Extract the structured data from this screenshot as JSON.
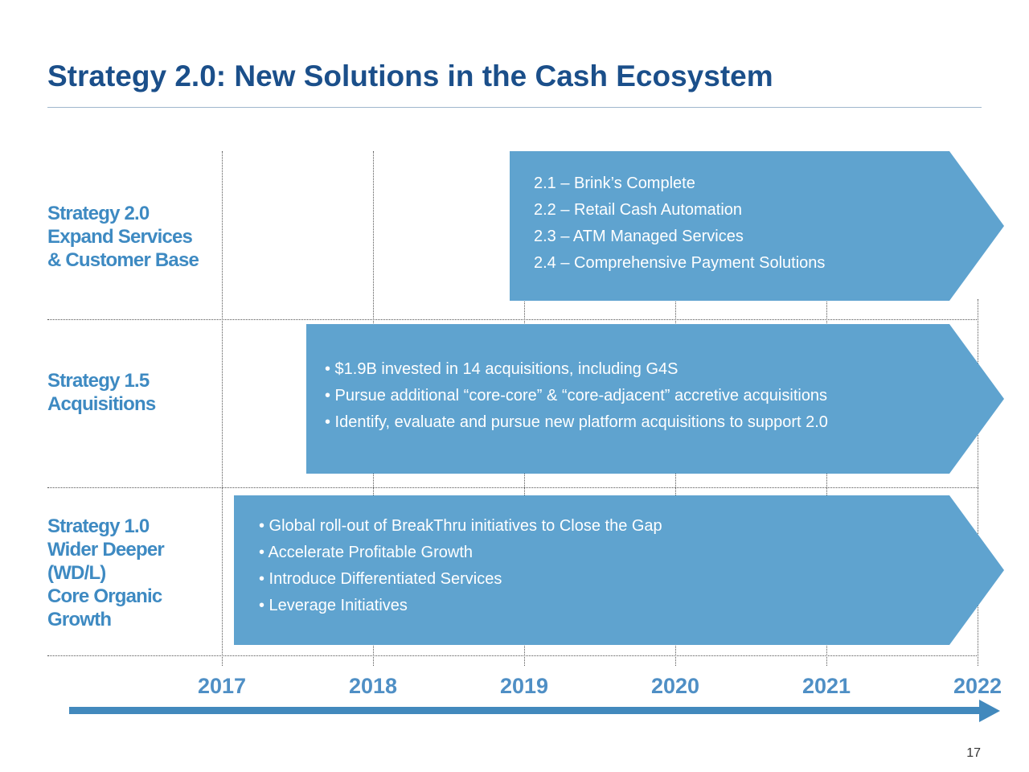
{
  "title": "Strategy 2.0: New Solutions in the Cash Ecosystem",
  "rows": [
    {
      "label_lines": [
        "Strategy 2.0",
        "Expand Services",
        "& Customer Base"
      ],
      "band_lines": [
        "2.1 – Brink’s Complete",
        "2.2 – Retail Cash Automation",
        "2.3 –  ATM Managed Services",
        "2.4 – Comprehensive Payment Solutions"
      ]
    },
    {
      "label_lines": [
        "Strategy 1.5",
        "Acquisitions"
      ],
      "band_lines": [
        "• $1.9B invested in 14 acquisitions, including G4S",
        "• Pursue additional “core-core” & “core-adjacent” accretive acquisitions",
        "• Identify, evaluate and pursue new platform acquisitions to support 2.0"
      ]
    },
    {
      "label_lines": [
        "Strategy 1.0",
        "Wider Deeper",
        "(WD/L)",
        "Core Organic",
        "Growth"
      ],
      "band_lines": [
        "• Global roll-out of BreakThru initiatives to Close the Gap",
        "• Accelerate Profitable Growth",
        "• Introduce Differentiated Services",
        "• Leverage Initiatives"
      ]
    }
  ],
  "timeline": {
    "years": [
      "2017",
      "2018",
      "2019",
      "2020",
      "2021",
      "2022"
    ]
  },
  "colors": {
    "title": "#1b4f8a",
    "band": "#5fa3cf",
    "label": "#3e8ac2",
    "year": "#4f8fc5",
    "timeline": "#4289bd"
  },
  "page_number": "17"
}
